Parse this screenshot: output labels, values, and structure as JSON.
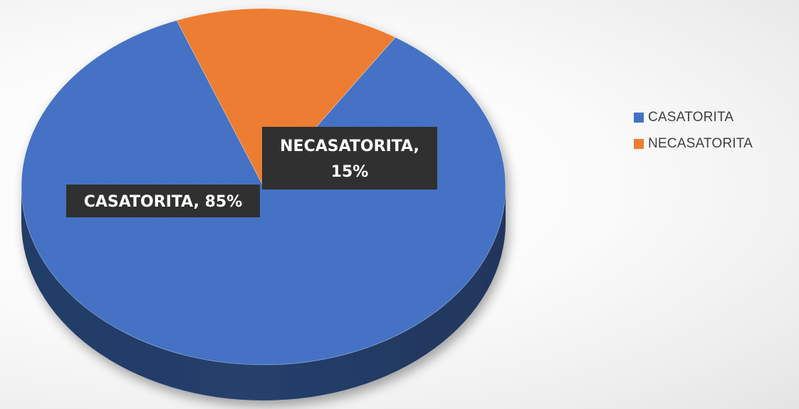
{
  "chart_data": {
    "type": "pie",
    "style": "3d",
    "categories": [
      "CASATORITA",
      "NECASATORITA"
    ],
    "values": [
      85,
      15
    ],
    "unit": "%",
    "colors": [
      "#4472C4",
      "#ED7D31"
    ],
    "data_labels": [
      "CASATORITA, 85%",
      "NECASATORITA, 15%"
    ],
    "data_labels_lines": [
      [
        "CASATORITA, 85%"
      ],
      [
        "NECASATORITA,",
        "15%"
      ]
    ],
    "legend_position": "right",
    "title": ""
  },
  "legend": {
    "items": [
      {
        "label": "CASATORITA",
        "color": "#4472C4"
      },
      {
        "label": "NECASATORITA",
        "color": "#ED7D31"
      }
    ]
  }
}
